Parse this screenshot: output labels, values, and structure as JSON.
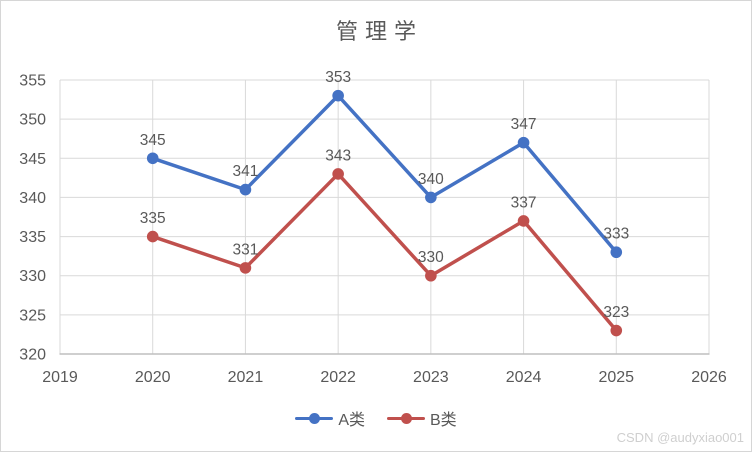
{
  "chart_data": {
    "type": "line",
    "title": "管理学",
    "categories": [
      2020,
      2021,
      2022,
      2023,
      2024,
      2025
    ],
    "x_ticks": [
      2019,
      2020,
      2021,
      2022,
      2023,
      2024,
      2025,
      2026
    ],
    "xlim": [
      2019,
      2026
    ],
    "ylim": [
      320,
      355
    ],
    "y_tick_step": 5,
    "grid": true,
    "legend_position": "bottom",
    "data_labels": true,
    "series": [
      {
        "name": "A类",
        "color": "#4472C4",
        "values": [
          345,
          341,
          353,
          340,
          347,
          333
        ]
      },
      {
        "name": "B类",
        "color": "#C0504D",
        "values": [
          335,
          331,
          343,
          330,
          337,
          323
        ]
      }
    ]
  },
  "watermark": {
    "text": "CSDN @audyxiao001"
  },
  "colors": {
    "gridline": "#D9D9D9",
    "axis_line": "#BFBFBF",
    "tick_text": "#595959",
    "label_text": "#595959",
    "title_text": "#595959",
    "watermark_text": "#CFCFCF",
    "border": "#D6D6D6",
    "background": "#FFFFFF"
  }
}
